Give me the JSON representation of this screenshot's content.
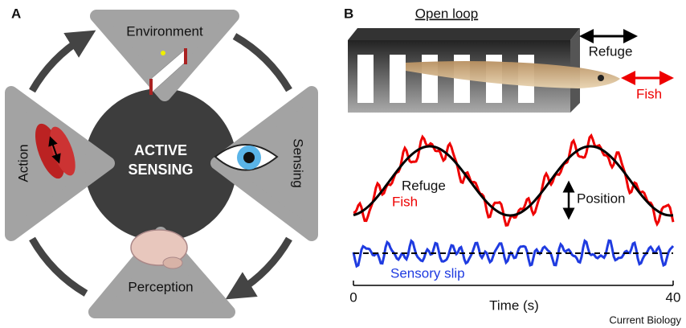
{
  "panel_a": {
    "label": "A",
    "center": [
      "ACTIVE",
      "SENSING"
    ],
    "nodes": [
      "Environment",
      "Sensing",
      "Perception",
      "Action"
    ]
  },
  "panel_b": {
    "label": "B",
    "title": "Open loop",
    "refuge": "Refuge",
    "fish": "Fish",
    "traces": {
      "refuge": "Refuge",
      "fish": "Fish",
      "position": "Position",
      "slip": "Sensory slip"
    },
    "axis": {
      "start": "0",
      "end": "40",
      "label": "Time (s)"
    }
  },
  "footer": "Current Biology"
}
